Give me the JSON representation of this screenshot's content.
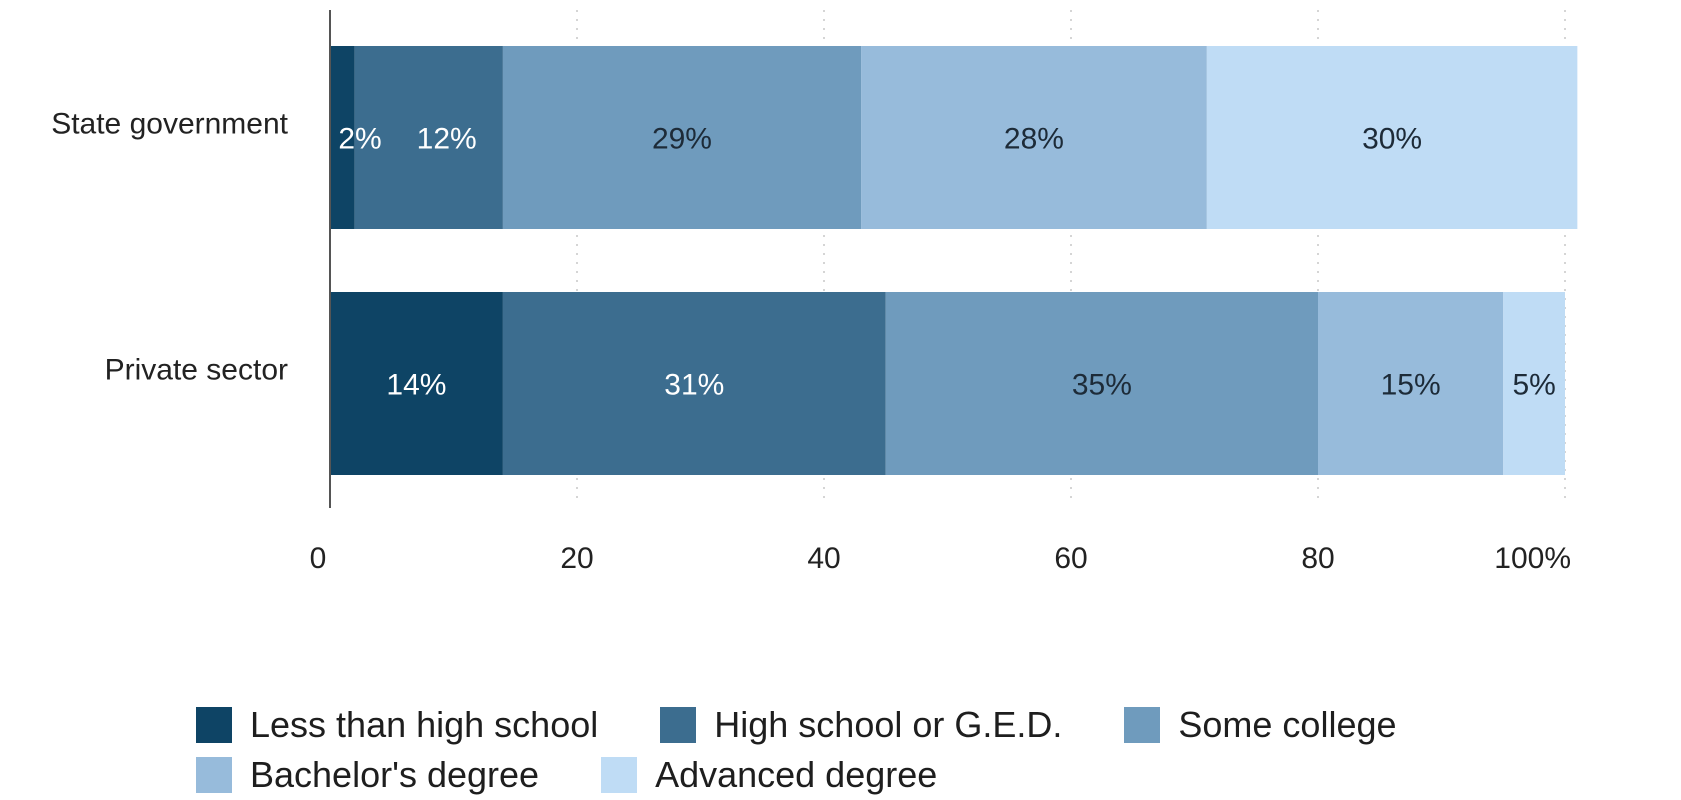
{
  "chart_data": {
    "type": "bar",
    "orientation": "horizontal",
    "stacked": true,
    "categories": [
      "State government",
      "Private sector"
    ],
    "series": [
      {
        "name": "Less than high school",
        "color": "#0e4465",
        "text_color": "#ffffff",
        "values": [
          2,
          14
        ],
        "labels": [
          "2%",
          "14%"
        ]
      },
      {
        "name": "High school or G.E.D.",
        "color": "#3c6d8f",
        "text_color": "#ffffff",
        "values": [
          12,
          31
        ],
        "labels": [
          "12%",
          "31%"
        ]
      },
      {
        "name": "Some college",
        "color": "#6f9bbd",
        "text_color": "#1d2b38",
        "values": [
          29,
          35
        ],
        "labels": [
          "29%",
          "35%"
        ]
      },
      {
        "name": "Bachelor's degree",
        "color": "#97bbdb",
        "text_color": "#1d2b38",
        "values": [
          28,
          15
        ],
        "labels": [
          "28%",
          "15%"
        ]
      },
      {
        "name": "Advanced degree",
        "color": "#bfdcf5",
        "text_color": "#1d2b38",
        "values": [
          30,
          5
        ],
        "labels": [
          "30%",
          "5%"
        ]
      }
    ],
    "xlim": [
      0,
      100
    ],
    "xticks": [
      0,
      20,
      40,
      60,
      80,
      100
    ],
    "xtick_labels": [
      "0",
      "20",
      "40",
      "60",
      "80",
      "100%"
    ],
    "grid": "vertical-dotted",
    "legend_position": "bottom"
  }
}
